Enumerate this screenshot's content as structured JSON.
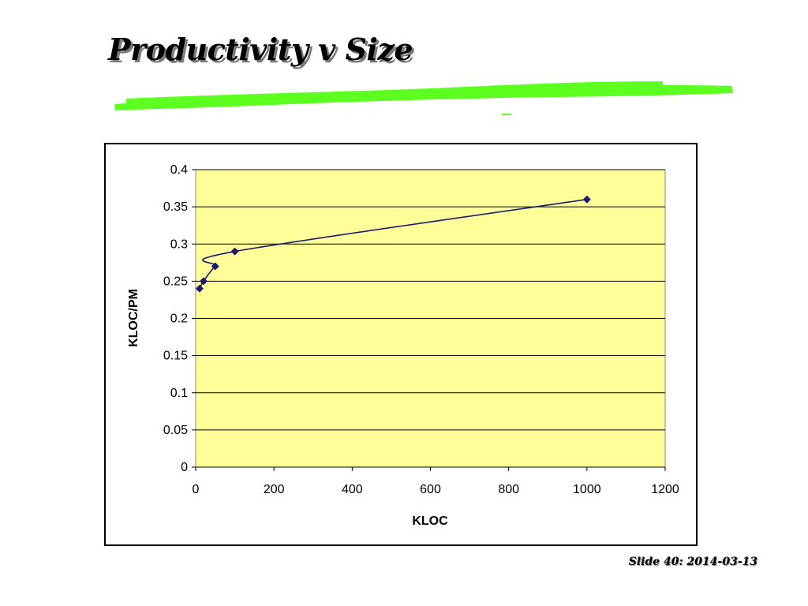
{
  "slide": {
    "title": "Productivity v Size",
    "footer": "Slide 40: 2014-03-13"
  },
  "colors": {
    "highlight": "#5cff1f",
    "plot_background": "#ffff99",
    "series_line": "#1a1a6e",
    "marker": "#1a1a6e"
  },
  "chart_data": {
    "type": "scatter",
    "xlabel": "KLOC",
    "ylabel": "KLOC/PM",
    "xlim": [
      0,
      1200
    ],
    "ylim": [
      0,
      0.4
    ],
    "x_ticks": [
      "0",
      "200",
      "400",
      "600",
      "800",
      "1000",
      "1200"
    ],
    "y_ticks": [
      "0",
      "0.05",
      "0.1",
      "0.15",
      "0.2",
      "0.25",
      "0.3",
      "0.35",
      "0.4"
    ],
    "grid": "horizontal",
    "series": [
      {
        "points": [
          {
            "x": 10,
            "y": 0.24
          },
          {
            "x": 20,
            "y": 0.25
          },
          {
            "x": 50,
            "y": 0.27
          },
          {
            "x": 100,
            "y": 0.29
          },
          {
            "x": 1000,
            "y": 0.36
          }
        ],
        "smoothed": true,
        "marker": "diamond"
      }
    ]
  }
}
